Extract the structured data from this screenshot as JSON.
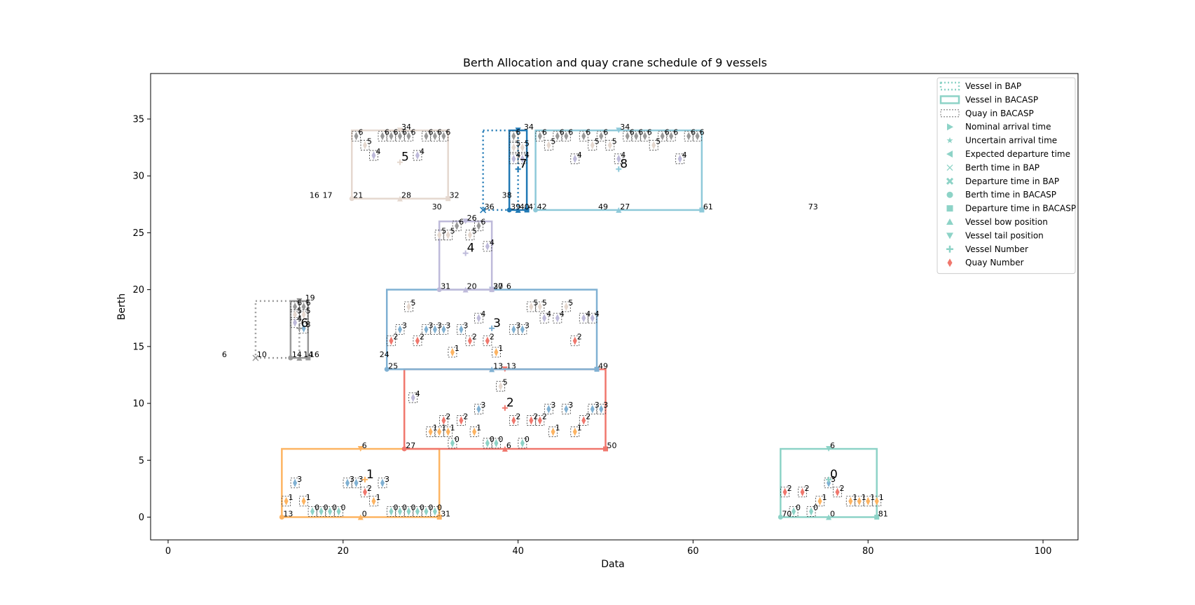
{
  "chart_data": {
    "type": "scatter",
    "title": "Berth Allocation and quay crane schedule  of 9 vessels",
    "xlabel": "Data",
    "ylabel": "Berth",
    "xlim": [
      -2,
      104
    ],
    "ylim": [
      -2,
      39
    ],
    "xticks": [
      0,
      20,
      40,
      60,
      80,
      100
    ],
    "yticks": [
      0,
      5,
      10,
      15,
      20,
      25,
      30,
      35
    ],
    "grid": false,
    "legend_position": "top-right",
    "legend": [
      {
        "label": "Vessel in BAP",
        "marker": "dotted-rect",
        "color": "#8dd3c7"
      },
      {
        "label": "Vessel in BACASP",
        "marker": "solid-rect",
        "color": "#8dd3c7"
      },
      {
        "label": "Quay in BACASP",
        "marker": "dashed-rect",
        "color": "#555555"
      },
      {
        "label": "Nominal arrival time",
        "marker": "triangle-right",
        "color": "#8dd3c7"
      },
      {
        "label": "Uncertain arrival time",
        "marker": "star",
        "color": "#8dd3c7"
      },
      {
        "label": "Expected departure time",
        "marker": "triangle-left",
        "color": "#8dd3c7"
      },
      {
        "label": "Berth time in BAP",
        "marker": "x",
        "color": "#8dd3c7"
      },
      {
        "label": "Departure time in BAP",
        "marker": "x-bold",
        "color": "#8dd3c7"
      },
      {
        "label": "Berth time in BACASP",
        "marker": "circle",
        "color": "#8dd3c7"
      },
      {
        "label": "Departure time in BACASP",
        "marker": "square",
        "color": "#8dd3c7"
      },
      {
        "label": "Vessel bow position",
        "marker": "triangle-up",
        "color": "#8dd3c7"
      },
      {
        "label": "Vessel tail position",
        "marker": "triangle-down",
        "color": "#8dd3c7"
      },
      {
        "label": "Vessel Number",
        "marker": "plus",
        "color": "#8dd3c7"
      },
      {
        "label": "Quay Number",
        "marker": "diamond",
        "color": "#f0776d"
      }
    ],
    "quay_colors": {
      "0": "#8dd3c7",
      "1": "#fdb462",
      "2": "#f0776d",
      "3": "#80b1d3",
      "4": "#bebada",
      "5": "#e5d8cf",
      "6": "#999999"
    },
    "vessels": [
      {
        "id": "0",
        "color": "#8dd3c7",
        "bap": null,
        "bacasp": [
          70,
          81,
          0,
          6
        ],
        "number_pos": [
          75.5,
          3.3
        ],
        "quays": [
          [
            70.5,
            2.2,
            "2"
          ],
          [
            72.5,
            2.2,
            "2"
          ],
          [
            76.5,
            2.2,
            "2"
          ],
          [
            71.5,
            0.5,
            "0"
          ],
          [
            73.5,
            0.5,
            "0"
          ],
          [
            74.5,
            1.4,
            "1"
          ],
          [
            78,
            1.4,
            "1"
          ],
          [
            79,
            1.4,
            "1"
          ],
          [
            80,
            1.4,
            "1"
          ],
          [
            81,
            1.4,
            "1"
          ],
          [
            75.5,
            3.0,
            "3"
          ]
        ],
        "labels": [
          [
            70,
            0,
            "70"
          ],
          [
            81,
            0,
            "81"
          ],
          [
            75.5,
            0,
            "0"
          ],
          [
            75.5,
            6,
            "6"
          ]
        ]
      },
      {
        "id": "1",
        "color": "#fdb462",
        "bap": null,
        "bacasp": [
          13,
          31,
          0,
          6
        ],
        "number_pos": [
          22.5,
          3.3
        ],
        "quays": [
          [
            13.5,
            1.4,
            "1"
          ],
          [
            15.5,
            1.4,
            "1"
          ],
          [
            23.5,
            1.4,
            "1"
          ],
          [
            16.5,
            0.5,
            "0"
          ],
          [
            17.5,
            0.5,
            "0"
          ],
          [
            18.5,
            0.5,
            "0"
          ],
          [
            19.5,
            0.5,
            "0"
          ],
          [
            25.5,
            0.5,
            "0"
          ],
          [
            26.5,
            0.5,
            "0"
          ],
          [
            27.5,
            0.5,
            "0"
          ],
          [
            28.5,
            0.5,
            "0"
          ],
          [
            29.5,
            0.5,
            "0"
          ],
          [
            30.5,
            0.5,
            "0"
          ],
          [
            22.5,
            2.2,
            "2"
          ],
          [
            14.5,
            3.0,
            "3"
          ],
          [
            20.5,
            3.0,
            "3"
          ],
          [
            21.5,
            3.0,
            "3"
          ],
          [
            24.5,
            3.0,
            "3"
          ]
        ],
        "labels": [
          [
            13,
            0,
            "13"
          ],
          [
            31,
            0,
            "31"
          ],
          [
            22,
            0,
            "0"
          ],
          [
            22,
            6,
            "6"
          ]
        ]
      },
      {
        "id": "2",
        "color": "#f0776d",
        "bap": null,
        "bacasp": [
          27,
          50,
          6,
          13
        ],
        "number_pos": [
          38.5,
          9.6
        ],
        "quays": [
          [
            28,
            10.5,
            "4"
          ],
          [
            38,
            11.5,
            "5"
          ],
          [
            30,
            7.5,
            "1"
          ],
          [
            31,
            7.5,
            "1"
          ],
          [
            32,
            7.5,
            "1"
          ],
          [
            35,
            7.5,
            "1"
          ],
          [
            44,
            7.5,
            "1"
          ],
          [
            46.5,
            7.5,
            "1"
          ],
          [
            32.5,
            6.5,
            "0"
          ],
          [
            36.5,
            6.5,
            "0"
          ],
          [
            37.5,
            6.5,
            "0"
          ],
          [
            40.5,
            6.5,
            "0"
          ],
          [
            31.5,
            8.5,
            "2"
          ],
          [
            33.5,
            8.5,
            "2"
          ],
          [
            39.5,
            8.5,
            "2"
          ],
          [
            41.5,
            8.5,
            "2"
          ],
          [
            42.5,
            8.5,
            "2"
          ],
          [
            47.5,
            8.5,
            "2"
          ],
          [
            35.5,
            9.5,
            "3"
          ],
          [
            43.5,
            9.5,
            "3"
          ],
          [
            45.5,
            9.5,
            "3"
          ],
          [
            48.5,
            9.5,
            "3"
          ],
          [
            49.5,
            9.5,
            "3"
          ]
        ],
        "labels": [
          [
            27,
            6,
            "27"
          ],
          [
            50,
            6,
            "50"
          ],
          [
            38.5,
            6,
            "6"
          ],
          [
            38.5,
            13,
            "13"
          ]
        ]
      },
      {
        "id": "3",
        "color": "#80b1d3",
        "bap": null,
        "bacasp": [
          25,
          49,
          13,
          20
        ],
        "number_pos": [
          37,
          16.6
        ],
        "quays": [
          [
            27.5,
            18.5,
            "5"
          ],
          [
            41.5,
            18.5,
            "5"
          ],
          [
            42.5,
            18.5,
            "5"
          ],
          [
            45.5,
            18.5,
            "5"
          ],
          [
            35.5,
            17.5,
            "4"
          ],
          [
            43,
            17.5,
            "4"
          ],
          [
            44.5,
            17.5,
            "4"
          ],
          [
            47.5,
            17.5,
            "4"
          ],
          [
            48.5,
            17.5,
            "4"
          ],
          [
            26.5,
            16.5,
            "3"
          ],
          [
            29.5,
            16.5,
            "3"
          ],
          [
            30.5,
            16.5,
            "3"
          ],
          [
            31.5,
            16.5,
            "3"
          ],
          [
            33.5,
            16.5,
            "3"
          ],
          [
            39.5,
            16.5,
            "3"
          ],
          [
            40.5,
            16.5,
            "3"
          ],
          [
            25.5,
            15.5,
            "2"
          ],
          [
            28.5,
            15.5,
            "2"
          ],
          [
            34.5,
            15.5,
            "2"
          ],
          [
            36.5,
            15.5,
            "2"
          ],
          [
            46.5,
            15.5,
            "2"
          ],
          [
            32.5,
            14.5,
            "1"
          ],
          [
            37.5,
            14.5,
            "1"
          ]
        ],
        "labels": [
          [
            25,
            13,
            "25"
          ],
          [
            49,
            13,
            "49"
          ],
          [
            37,
            13,
            "13"
          ],
          [
            37,
            20,
            "20"
          ]
        ]
      },
      {
        "id": "4",
        "color": "#bebada",
        "bap": null,
        "bacasp": [
          31,
          37,
          20,
          26
        ],
        "number_pos": [
          34,
          23.2
        ],
        "quays": [
          [
            31,
            24.8,
            "5"
          ],
          [
            32,
            24.8,
            "5"
          ],
          [
            34.5,
            24.8,
            "5"
          ],
          [
            33,
            25.6,
            "6"
          ],
          [
            35.5,
            25.6,
            "6"
          ],
          [
            36.5,
            23.8,
            "4"
          ]
        ],
        "labels": [
          [
            31,
            20,
            "31"
          ],
          [
            37,
            20,
            "37"
          ],
          [
            34,
            20,
            "20"
          ],
          [
            34,
            26,
            "26"
          ],
          [
            38.5,
            20,
            "6"
          ]
        ]
      },
      {
        "id": "5",
        "color": "#e5d8cf",
        "bap": null,
        "bacasp": [
          21,
          32,
          28,
          34
        ],
        "number_pos": [
          26.5,
          31.2
        ],
        "quays": [
          [
            21.5,
            33.5,
            "6"
          ],
          [
            24.5,
            33.5,
            "6"
          ],
          [
            25.5,
            33.5,
            "6"
          ],
          [
            26.5,
            33.5,
            "6"
          ],
          [
            27.5,
            33.5,
            "6"
          ],
          [
            29.5,
            33.5,
            "6"
          ],
          [
            30.5,
            33.5,
            "6"
          ],
          [
            31.5,
            33.5,
            "6"
          ],
          [
            22.5,
            32.7,
            "5"
          ],
          [
            23.5,
            31.8,
            "4"
          ],
          [
            28.5,
            31.8,
            "4"
          ]
        ],
        "labels": [
          [
            21,
            28,
            "21"
          ],
          [
            32,
            28,
            "32"
          ],
          [
            26.5,
            28,
            "28"
          ],
          [
            26.5,
            34,
            "34"
          ],
          [
            16,
            28,
            "16"
          ],
          [
            17.5,
            28,
            "17"
          ]
        ]
      },
      {
        "id": "6",
        "color": "#999999",
        "bap": [
          10,
          15,
          14,
          19
        ],
        "bacasp": [
          14,
          16,
          14,
          19
        ],
        "number_pos": [
          15,
          16.6
        ],
        "quays": [
          [
            14.5,
            18.5,
            "6"
          ],
          [
            15.5,
            18.5,
            "6"
          ],
          [
            14.5,
            17.8,
            "5"
          ],
          [
            15.5,
            17.8,
            "5"
          ],
          [
            14.5,
            17.1,
            "4"
          ],
          [
            15.5,
            16.6,
            "3"
          ]
        ],
        "labels": [
          [
            14,
            14,
            "14"
          ],
          [
            15.3,
            14,
            "14"
          ],
          [
            16,
            14,
            "16"
          ],
          [
            15.5,
            19,
            "19"
          ],
          [
            6,
            14,
            "6"
          ],
          [
            10,
            14,
            "10"
          ],
          [
            24,
            14,
            "24"
          ]
        ]
      },
      {
        "id": "7",
        "color": "#1f78b4",
        "bap": [
          36,
          40,
          27,
          34
        ],
        "bacasp": [
          39,
          41,
          27,
          34
        ],
        "number_pos": [
          40,
          30.6
        ],
        "quays": [
          [
            39.5,
            33.5,
            "6"
          ],
          [
            39.5,
            32.5,
            "5"
          ],
          [
            40.5,
            32.5,
            "5"
          ],
          [
            39.5,
            31.5,
            "4"
          ],
          [
            40.5,
            31.5,
            "4"
          ]
        ],
        "labels": [
          [
            39,
            27,
            "39"
          ],
          [
            40,
            27,
            "40"
          ],
          [
            41,
            27,
            "41"
          ],
          [
            42,
            27,
            "42"
          ],
          [
            40.5,
            34,
            "34"
          ],
          [
            36,
            27,
            "36"
          ],
          [
            38,
            28,
            "38"
          ],
          [
            30,
            27,
            "30"
          ]
        ]
      },
      {
        "id": "8",
        "color": "#8ec9d9",
        "bap": null,
        "bacasp": [
          42,
          61,
          27,
          34
        ],
        "number_pos": [
          51.5,
          30.6
        ],
        "quays": [
          [
            42.5,
            33.5,
            "6"
          ],
          [
            44.5,
            33.5,
            "6"
          ],
          [
            45.5,
            33.5,
            "6"
          ],
          [
            47.5,
            33.5,
            "6"
          ],
          [
            49.5,
            33.5,
            "6"
          ],
          [
            52.5,
            33.5,
            "6"
          ],
          [
            53.5,
            33.5,
            "6"
          ],
          [
            54.5,
            33.5,
            "6"
          ],
          [
            56.5,
            33.5,
            "6"
          ],
          [
            57.5,
            33.5,
            "6"
          ],
          [
            59.5,
            33.5,
            "6"
          ],
          [
            60.5,
            33.5,
            "6"
          ],
          [
            43.5,
            32.7,
            "5"
          ],
          [
            48.5,
            32.7,
            "5"
          ],
          [
            50.5,
            32.7,
            "5"
          ],
          [
            55.5,
            32.7,
            "5"
          ],
          [
            46.5,
            31.5,
            "4"
          ],
          [
            51.5,
            31.5,
            "4"
          ],
          [
            58.5,
            31.5,
            "4"
          ]
        ],
        "labels": [
          [
            61,
            27,
            "61"
          ],
          [
            51.5,
            27,
            "27"
          ],
          [
            51.5,
            34,
            "34"
          ],
          [
            49,
            27,
            "49"
          ],
          [
            73,
            27,
            "73"
          ]
        ]
      }
    ]
  }
}
